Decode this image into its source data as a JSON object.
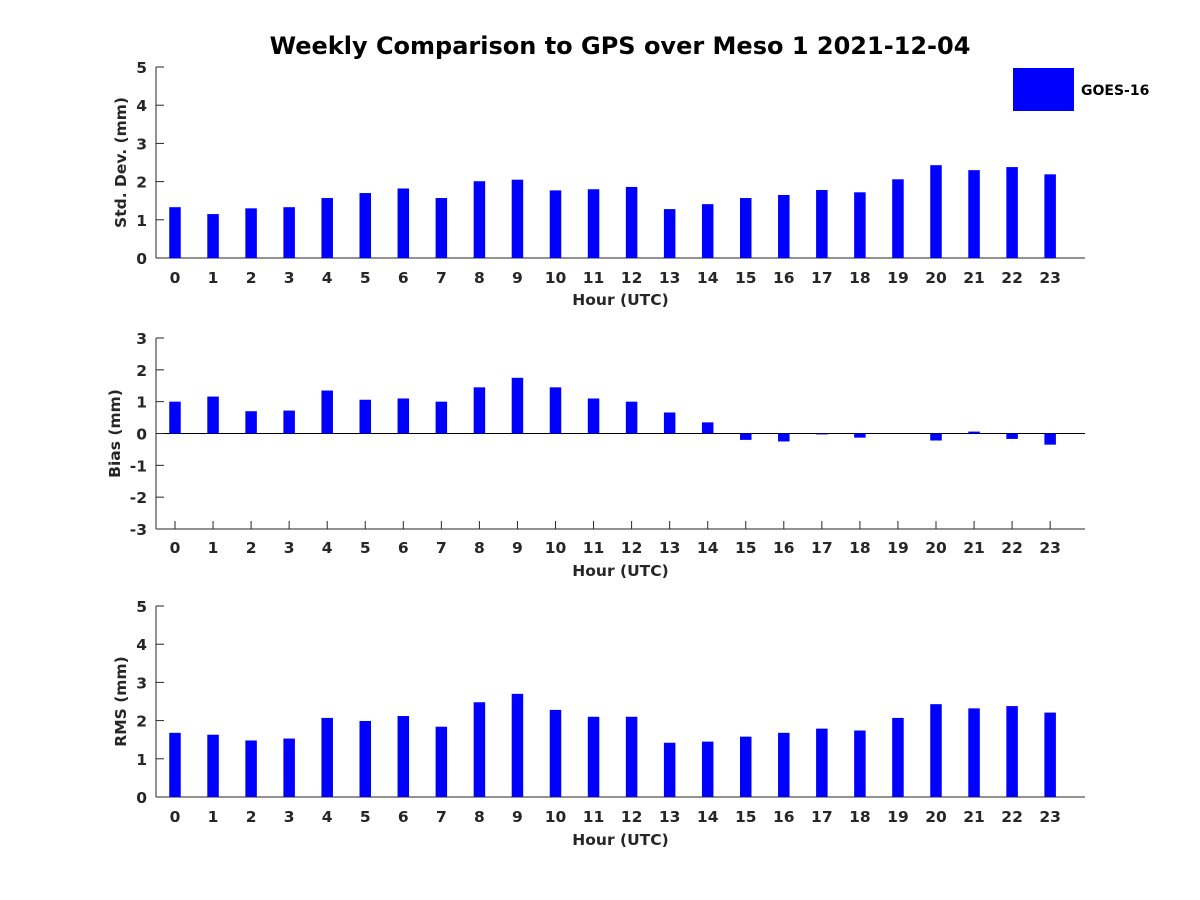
{
  "chart_data": {
    "type": "bar",
    "title": "Weekly Comparison to GPS over Meso 1 2021-12-04",
    "legend": {
      "entries": [
        "GOES-16"
      ],
      "placement": "top-right"
    },
    "color": "#0000ff",
    "categories": [
      "0",
      "1",
      "2",
      "3",
      "4",
      "5",
      "6",
      "7",
      "8",
      "9",
      "10",
      "11",
      "12",
      "13",
      "14",
      "15",
      "16",
      "17",
      "18",
      "19",
      "20",
      "21",
      "22",
      "23"
    ],
    "panels": [
      {
        "id": "std",
        "ylabel": "Std. Dev. (mm)",
        "xlabel": "Hour (UTC)",
        "ylim": [
          0,
          5
        ],
        "yticks": [
          0,
          1,
          2,
          3,
          4,
          5
        ],
        "series": [
          {
            "name": "GOES-16",
            "values": [
              1.33,
              1.15,
              1.3,
              1.33,
              1.57,
              1.7,
              1.82,
              1.57,
              2.01,
              2.05,
              1.77,
              1.8,
              1.86,
              1.28,
              1.41,
              1.57,
              1.65,
              1.78,
              1.72,
              2.06,
              2.43,
              2.3,
              2.38,
              2.19
            ]
          }
        ]
      },
      {
        "id": "bias",
        "ylabel": "Bias (mm)",
        "xlabel": "Hour (UTC)",
        "ylim": [
          -3,
          3
        ],
        "yticks": [
          -3,
          -2,
          -1,
          0,
          1,
          2,
          3
        ],
        "zero_line": true,
        "series": [
          {
            "name": "GOES-16",
            "values": [
              1.0,
              1.16,
              0.7,
              0.72,
              1.35,
              1.06,
              1.1,
              1.0,
              1.45,
              1.75,
              1.45,
              1.1,
              1.0,
              0.66,
              0.35,
              -0.2,
              -0.25,
              -0.03,
              -0.13,
              0.0,
              -0.22,
              0.06,
              -0.17,
              -0.35
            ]
          }
        ]
      },
      {
        "id": "rms",
        "ylabel": "RMS (mm)",
        "xlabel": "Hour (UTC)",
        "ylim": [
          0,
          5
        ],
        "yticks": [
          0,
          1,
          2,
          3,
          4,
          5
        ],
        "series": [
          {
            "name": "GOES-16",
            "values": [
              1.68,
              1.63,
              1.48,
              1.53,
              2.07,
              1.99,
              2.12,
              1.84,
              2.48,
              2.7,
              2.28,
              2.1,
              2.1,
              1.42,
              1.45,
              1.58,
              1.68,
              1.79,
              1.74,
              2.07,
              2.43,
              2.32,
              2.38,
              2.21
            ]
          }
        ]
      }
    ]
  }
}
